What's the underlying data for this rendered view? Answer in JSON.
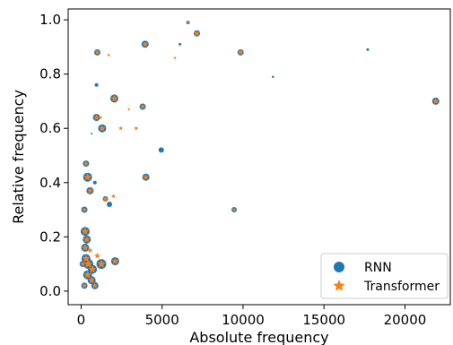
{
  "chart_data": {
    "type": "scatter",
    "xlabel": "Absolute frequency",
    "ylabel": "Relative frequency",
    "xlim": [
      -800,
      22800
    ],
    "ylim": [
      -0.05,
      1.04
    ],
    "xticks": [
      0,
      5000,
      10000,
      15000,
      20000
    ],
    "yticks": [
      0.0,
      0.2,
      0.4,
      0.6,
      0.8,
      1.0
    ],
    "xtick_labels": [
      "0",
      "5000",
      "10000",
      "15000",
      "20000"
    ],
    "ytick_labels": [
      "0.0",
      "0.2",
      "0.4",
      "0.6",
      "0.8",
      "1.0"
    ],
    "grid": false,
    "legend_position": "bottom-right",
    "colors": {
      "RNN": "#1f77b4",
      "Transformer": "#ff7f0e"
    },
    "series": [
      {
        "name": "RNN",
        "marker": "circle",
        "points": [
          {
            "x": 1000,
            "y": 0.88,
            "s": 7
          },
          {
            "x": 3950,
            "y": 0.91,
            "s": 8
          },
          {
            "x": 6600,
            "y": 0.99,
            "s": 4
          },
          {
            "x": 6100,
            "y": 0.91,
            "s": 3
          },
          {
            "x": 7150,
            "y": 0.95,
            "s": 7
          },
          {
            "x": 9850,
            "y": 0.88,
            "s": 7
          },
          {
            "x": 17700,
            "y": 0.89,
            "s": 3
          },
          {
            "x": 11850,
            "y": 0.79,
            "s": 2.5
          },
          {
            "x": 21900,
            "y": 0.7,
            "s": 8
          },
          {
            "x": 2050,
            "y": 0.71,
            "s": 9
          },
          {
            "x": 950,
            "y": 0.76,
            "s": 4
          },
          {
            "x": 950,
            "y": 0.64,
            "s": 8
          },
          {
            "x": 1300,
            "y": 0.6,
            "s": 9
          },
          {
            "x": 650,
            "y": 0.58,
            "s": 2
          },
          {
            "x": 3800,
            "y": 0.68,
            "s": 7
          },
          {
            "x": 4950,
            "y": 0.52,
            "s": 6
          },
          {
            "x": 300,
            "y": 0.47,
            "s": 7
          },
          {
            "x": 400,
            "y": 0.42,
            "s": 10
          },
          {
            "x": 850,
            "y": 0.4,
            "s": 4
          },
          {
            "x": 550,
            "y": 0.37,
            "s": 8
          },
          {
            "x": 4000,
            "y": 0.42,
            "s": 8
          },
          {
            "x": 1500,
            "y": 0.34,
            "s": 6
          },
          {
            "x": 1750,
            "y": 0.32,
            "s": 6
          },
          {
            "x": 200,
            "y": 0.3,
            "s": 7
          },
          {
            "x": 9450,
            "y": 0.3,
            "s": 6
          },
          {
            "x": 250,
            "y": 0.22,
            "s": 10
          },
          {
            "x": 350,
            "y": 0.19,
            "s": 9
          },
          {
            "x": 250,
            "y": 0.16,
            "s": 9
          },
          {
            "x": 300,
            "y": 0.12,
            "s": 10
          },
          {
            "x": 450,
            "y": 0.1,
            "s": 11
          },
          {
            "x": 700,
            "y": 0.08,
            "s": 10
          },
          {
            "x": 1250,
            "y": 0.1,
            "s": 11
          },
          {
            "x": 2100,
            "y": 0.11,
            "s": 9
          },
          {
            "x": 400,
            "y": 0.06,
            "s": 10
          },
          {
            "x": 650,
            "y": 0.04,
            "s": 9
          },
          {
            "x": 850,
            "y": 0.02,
            "s": 8
          },
          {
            "x": 200,
            "y": 0.02,
            "s": 7
          },
          {
            "x": 100,
            "y": 0.1,
            "s": 7
          }
        ]
      },
      {
        "name": "Transformer",
        "marker": "star",
        "points": [
          {
            "x": 1000,
            "y": 0.88,
            "s": 5
          },
          {
            "x": 1700,
            "y": 0.87,
            "s": 3
          },
          {
            "x": 3950,
            "y": 0.91,
            "s": 6
          },
          {
            "x": 7150,
            "y": 0.95,
            "s": 6
          },
          {
            "x": 5800,
            "y": 0.86,
            "s": 2.5
          },
          {
            "x": 6600,
            "y": 0.99,
            "s": 2.5
          },
          {
            "x": 9850,
            "y": 0.88,
            "s": 6
          },
          {
            "x": 21900,
            "y": 0.7,
            "s": 6
          },
          {
            "x": 2050,
            "y": 0.71,
            "s": 7
          },
          {
            "x": 950,
            "y": 0.64,
            "s": 6
          },
          {
            "x": 1200,
            "y": 0.64,
            "s": 3
          },
          {
            "x": 1300,
            "y": 0.6,
            "s": 7
          },
          {
            "x": 2450,
            "y": 0.6,
            "s": 4
          },
          {
            "x": 2950,
            "y": 0.67,
            "s": 2.5
          },
          {
            "x": 3400,
            "y": 0.6,
            "s": 4
          },
          {
            "x": 3800,
            "y": 0.68,
            "s": 5
          },
          {
            "x": 4000,
            "y": 0.42,
            "s": 6
          },
          {
            "x": 300,
            "y": 0.47,
            "s": 5
          },
          {
            "x": 400,
            "y": 0.42,
            "s": 8
          },
          {
            "x": 550,
            "y": 0.37,
            "s": 6
          },
          {
            "x": 1500,
            "y": 0.34,
            "s": 5
          },
          {
            "x": 2000,
            "y": 0.35,
            "s": 4
          },
          {
            "x": 200,
            "y": 0.3,
            "s": 5
          },
          {
            "x": 9450,
            "y": 0.3,
            "s": 4
          },
          {
            "x": 250,
            "y": 0.22,
            "s": 8
          },
          {
            "x": 350,
            "y": 0.19,
            "s": 7
          },
          {
            "x": 250,
            "y": 0.16,
            "s": 7
          },
          {
            "x": 300,
            "y": 0.12,
            "s": 8
          },
          {
            "x": 450,
            "y": 0.1,
            "s": 9
          },
          {
            "x": 700,
            "y": 0.08,
            "s": 8
          },
          {
            "x": 1250,
            "y": 0.1,
            "s": 9
          },
          {
            "x": 2100,
            "y": 0.11,
            "s": 7
          },
          {
            "x": 400,
            "y": 0.06,
            "s": 8
          },
          {
            "x": 650,
            "y": 0.04,
            "s": 7
          },
          {
            "x": 850,
            "y": 0.02,
            "s": 6
          },
          {
            "x": 200,
            "y": 0.02,
            "s": 5
          },
          {
            "x": 100,
            "y": 0.1,
            "s": 5
          },
          {
            "x": 1000,
            "y": 0.13,
            "s": 6
          },
          {
            "x": 550,
            "y": 0.15,
            "s": 5
          }
        ]
      }
    ]
  }
}
